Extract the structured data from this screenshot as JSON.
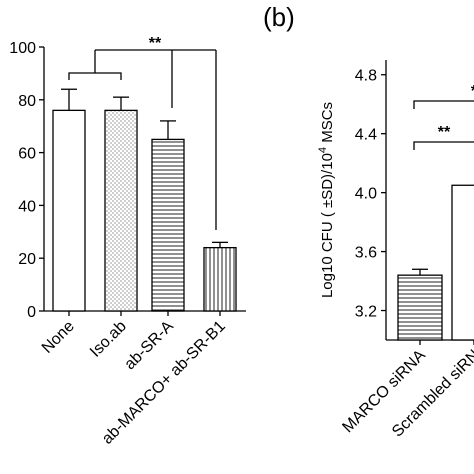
{
  "chart_data": [
    {
      "type": "bar",
      "panel_label": "",
      "categories": [
        "None",
        "Iso.ab",
        "ab-SR-A",
        "ab-MARCO+ ab-SR-B1"
      ],
      "values": [
        76,
        76,
        65,
        24
      ],
      "errors": [
        8,
        5,
        7,
        2
      ],
      "patterns": [
        "none",
        "dots",
        "hlines",
        "vlines"
      ],
      "xlabel": "",
      "ylabel": "",
      "ylim": [
        0,
        100
      ],
      "yticks": [
        "0",
        "20",
        "40",
        "60",
        "80",
        "100"
      ],
      "significance_label": "**",
      "grid": false,
      "legend": "none"
    },
    {
      "type": "bar",
      "panel_label": "(b)",
      "categories": [
        "MARCO siRNA",
        "Scrambled siRN"
      ],
      "values": [
        3.44,
        4.05
      ],
      "errors": [
        0.04,
        0
      ],
      "patterns": [
        "hlines",
        "none"
      ],
      "xlabel": "",
      "ylabel_main": "Log10 CFU ( ±SD)/10",
      "ylabel_sup": "4",
      "ylabel_tail": " MSCs",
      "ylim": [
        3.0,
        4.9
      ],
      "yticks": [
        "3.2",
        "3.6",
        "4.0",
        "4.4",
        "4.8"
      ],
      "significance_labels": [
        "**",
        "*"
      ],
      "grid": false,
      "legend": "none"
    }
  ]
}
